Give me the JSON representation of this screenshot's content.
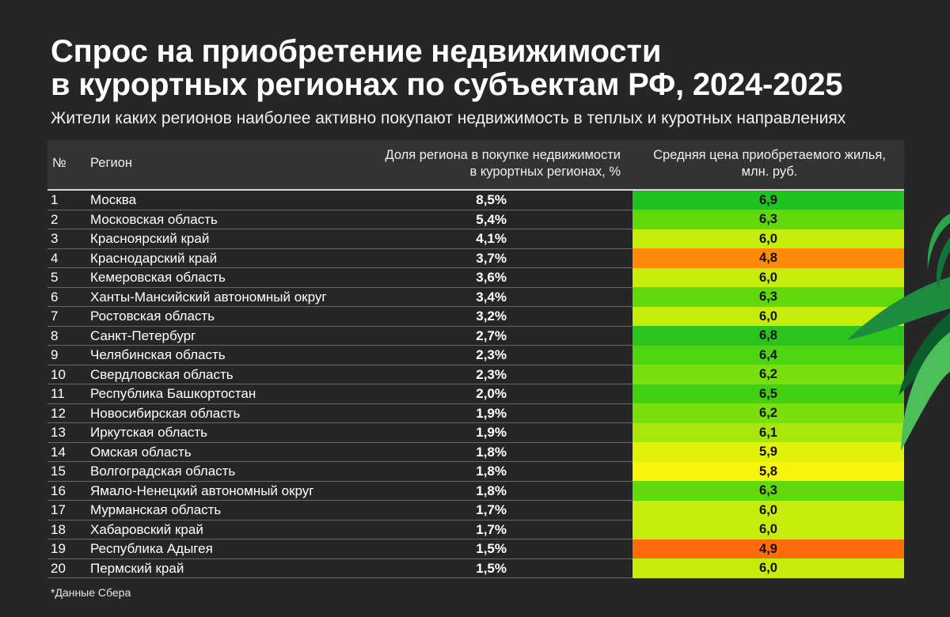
{
  "title": {
    "line1": "Спрос на приобретение недвижимости",
    "line2": "в курортных регионах по субъектам РФ, 2024-2025"
  },
  "subtitle": "Жители каких регионов наиболее активно покупают недвижимость в теплых и куротных направлениях",
  "footnote": "*Данные Сбера",
  "decoration": {
    "leaf_icon": "green-leaves-icon",
    "leaf_colors": [
      "#0b5e2c",
      "#1e8c3e",
      "#4cbf5a"
    ]
  },
  "chart_data": {
    "type": "table",
    "columns": [
      "№",
      "Регион",
      "Доля региона в покупке недвижимости в курортных регионах, %",
      "Средняя цена приобретаемого жилья, млн. руб."
    ],
    "column_lines": {
      "share": [
        "Доля региона в покупке недвижимости",
        "в курортных регионах, %"
      ],
      "price": [
        "Средняя цена приобретаемого жилья,",
        "млн. руб."
      ]
    },
    "rows": [
      {
        "num": "1",
        "region": "Москва",
        "share": "8,5%",
        "price": "6,9",
        "color": "#1fc21f"
      },
      {
        "num": "2",
        "region": "Московская область",
        "share": "5,4%",
        "price": "6,3",
        "color": "#5fd80c"
      },
      {
        "num": "3",
        "region": "Красноярский край",
        "share": "4,1%",
        "price": "6,0",
        "color": "#c6ec0c"
      },
      {
        "num": "4",
        "region": "Краснодарский край",
        "share": "3,7%",
        "price": "4,8",
        "color": "#ff8a0a"
      },
      {
        "num": "5",
        "region": "Кемеровская область",
        "share": "3,6%",
        "price": "6,0",
        "color": "#c6ec0c"
      },
      {
        "num": "6",
        "region": "Ханты-Мансийский автономный округ",
        "share": "3,4%",
        "price": "6,3",
        "color": "#5fd80c"
      },
      {
        "num": "7",
        "region": "Ростовская область",
        "share": "3,2%",
        "price": "6,0",
        "color": "#c6ec0c"
      },
      {
        "num": "8",
        "region": "Санкт-Петербург",
        "share": "2,7%",
        "price": "6,8",
        "color": "#2cc41c"
      },
      {
        "num": "9",
        "region": "Челябинская область",
        "share": "2,3%",
        "price": "6,4",
        "color": "#4fd410"
      },
      {
        "num": "10",
        "region": "Свердловская область",
        "share": "2,3%",
        "price": "6,2",
        "color": "#7adf0c"
      },
      {
        "num": "11",
        "region": "Республика Башкортостан",
        "share": "2,0%",
        "price": "6,5",
        "color": "#43d012"
      },
      {
        "num": "12",
        "region": "Новосибирская область",
        "share": "1,9%",
        "price": "6,2",
        "color": "#7adf0c"
      },
      {
        "num": "13",
        "region": "Иркутская область",
        "share": "1,9%",
        "price": "6,1",
        "color": "#a8e60c"
      },
      {
        "num": "14",
        "region": "Омская область",
        "share": "1,8%",
        "price": "5,9",
        "color": "#e2f20a"
      },
      {
        "num": "15",
        "region": "Волгоградская область",
        "share": "1,8%",
        "price": "5,8",
        "color": "#f5f40a"
      },
      {
        "num": "16",
        "region": "Ямало-Ненецкий автономный округ",
        "share": "1,8%",
        "price": "6,3",
        "color": "#5fd80c"
      },
      {
        "num": "17",
        "region": "Мурманская область",
        "share": "1,7%",
        "price": "6,0",
        "color": "#c6ec0c"
      },
      {
        "num": "18",
        "region": "Хабаровский край",
        "share": "1,7%",
        "price": "6,0",
        "color": "#c6ec0c"
      },
      {
        "num": "19",
        "region": "Республика Адыгея",
        "share": "1,5%",
        "price": "4,9",
        "color": "#ff6a0a"
      },
      {
        "num": "20",
        "region": "Пермский край",
        "share": "1,5%",
        "price": "6,0",
        "color": "#c6ec0c"
      }
    ]
  }
}
